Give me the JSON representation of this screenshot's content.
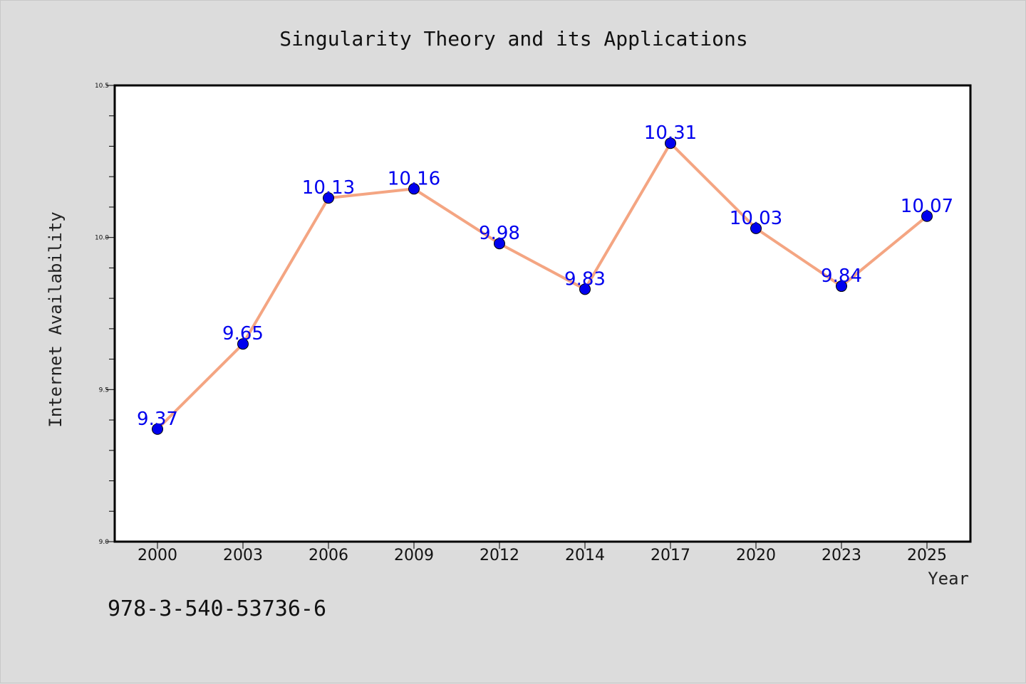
{
  "chart_data": {
    "type": "line",
    "title": "Singularity Theory and its Applications",
    "xlabel": "Year",
    "ylabel": "Internet Availability",
    "categories": [
      "2000",
      "2003",
      "2006",
      "2009",
      "2012",
      "2014",
      "2017",
      "2020",
      "2023",
      "2025"
    ],
    "series": [
      {
        "values": [
          9.37,
          9.65,
          10.13,
          10.16,
          9.98,
          9.83,
          10.31,
          10.03,
          9.84,
          10.07
        ],
        "labels": [
          "9.37",
          "9.65",
          "10.13",
          "10.16",
          "9.98",
          "9.83",
          "10.31",
          "10.03",
          "9.84",
          "10.07"
        ],
        "line_color": "#f4a582",
        "marker_color": "#0000ee"
      }
    ],
    "ylim": [
      9.0,
      10.5
    ],
    "yticks": [
      "9.0",
      "9.5",
      "10.0",
      "10.5"
    ],
    "yticks_values": [
      9.0,
      9.5,
      10.0,
      10.5
    ],
    "grid": false,
    "legend": "none"
  },
  "footer": {
    "isbn": "978-3-540-53736-6"
  }
}
